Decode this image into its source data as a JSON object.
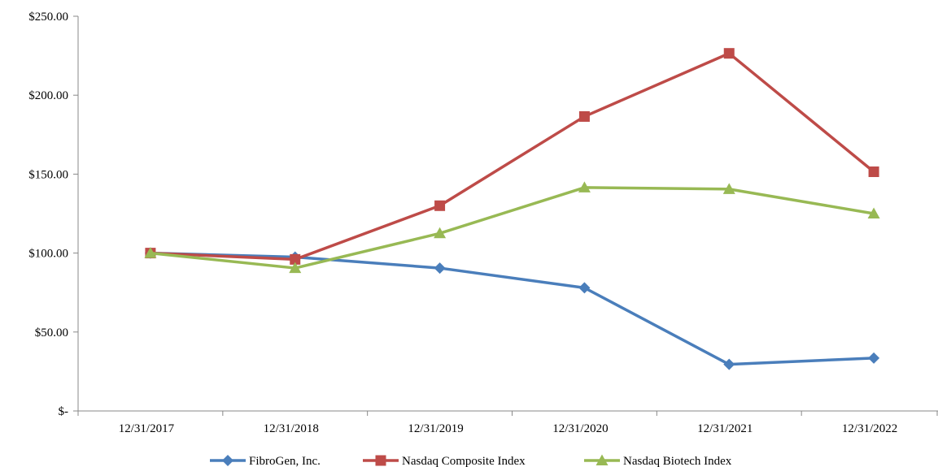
{
  "chart_data": {
    "type": "line",
    "categories": [
      "12/31/2017",
      "12/31/2018",
      "12/31/2019",
      "12/31/2020",
      "12/31/2021",
      "12/31/2022"
    ],
    "ylim": [
      0,
      250
    ],
    "yticks": [
      0,
      50,
      100,
      150,
      200,
      250
    ],
    "ytick_labels": [
      "$-",
      "$50.00",
      "$100.00",
      "$150.00",
      "$200.00",
      "$250.00"
    ],
    "grid": false,
    "legend_position": "bottom",
    "series": [
      {
        "name": "FibroGen, Inc.",
        "marker": "diamond",
        "color": "#4a7ebb",
        "values": [
          100,
          97.5,
          90.5,
          78,
          29.5,
          33.5
        ]
      },
      {
        "name": "Nasdaq Composite Index",
        "marker": "square",
        "color": "#be4b48",
        "values": [
          100,
          96,
          130,
          186.5,
          226.5,
          151.5
        ]
      },
      {
        "name": "Nasdaq Biotech Index",
        "marker": "triangle",
        "color": "#98b954",
        "values": [
          100,
          90.5,
          112.5,
          141.5,
          140.5,
          125
        ]
      }
    ]
  }
}
